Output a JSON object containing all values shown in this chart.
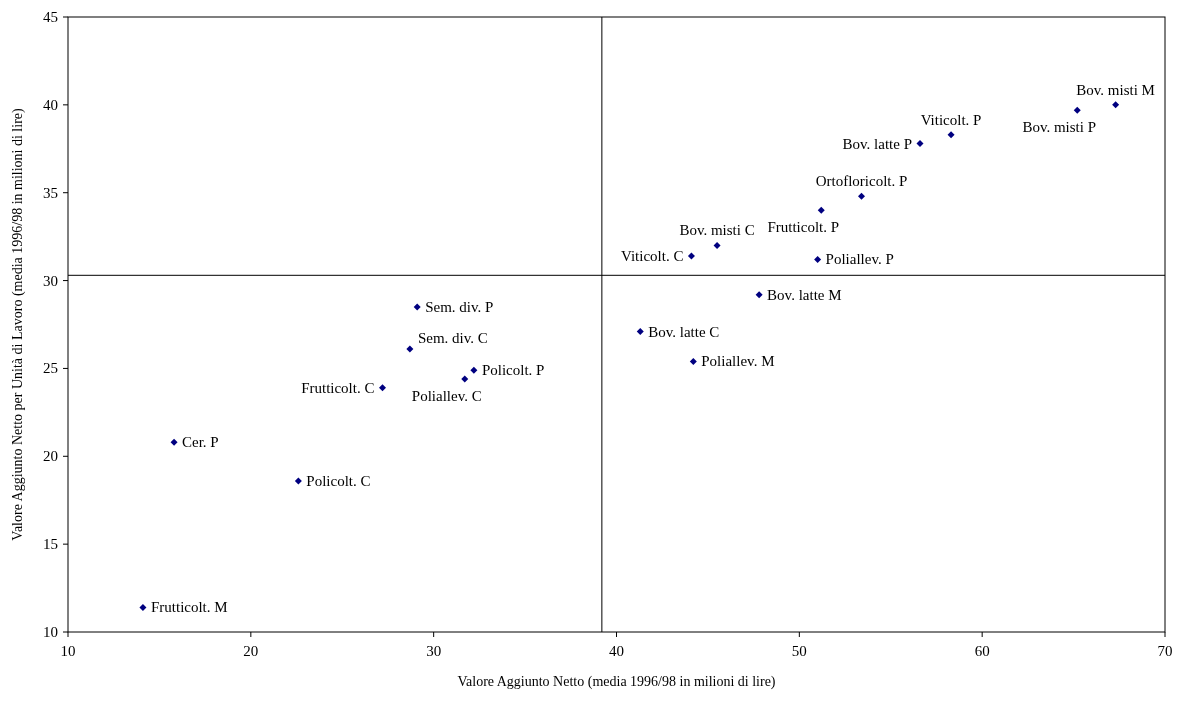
{
  "chart_data": {
    "type": "scatter",
    "xlabel": "Valore Aggiunto Netto (media 1996/98 in milioni di lire)",
    "ylabel": "Valore Aggiunto Netto per Unità di Lavoro (media 1996/98 in milioni di lire)",
    "x": [
      67.3,
      65.2,
      58.3,
      56.6,
      53.4,
      51.2,
      45.5,
      44.1,
      51.0,
      47.8,
      41.3,
      44.2,
      29.1,
      28.7,
      32.2,
      31.7,
      27.2,
      15.8,
      22.6,
      14.1
    ],
    "series": [
      {
        "color": "#000080",
        "values": [
          40.0,
          39.7,
          38.3,
          37.8,
          34.8,
          34.0,
          32.0,
          31.4,
          31.2,
          29.2,
          27.1,
          25.4,
          28.5,
          26.1,
          24.9,
          24.4,
          23.9,
          20.8,
          18.6,
          11.4
        ]
      }
    ],
    "annotations": [
      {
        "text": "Bov. misti M",
        "x": 67.3,
        "y": 40.0
      },
      {
        "text": "Bov. misti P",
        "x": 65.2,
        "y": 39.7
      },
      {
        "text": "Viticolt. P",
        "x": 58.3,
        "y": 38.3
      },
      {
        "text": "Bov. latte P",
        "x": 56.6,
        "y": 37.8
      },
      {
        "text": "Ortofloricolt. P",
        "x": 53.4,
        "y": 34.8
      },
      {
        "text": "Frutticolt. P",
        "x": 51.2,
        "y": 34.0
      },
      {
        "text": "Bov. misti C",
        "x": 45.5,
        "y": 32.0
      },
      {
        "text": "Viticolt. C",
        "x": 44.1,
        "y": 31.4
      },
      {
        "text": "Poliallev. P",
        "x": 51.0,
        "y": 31.2
      },
      {
        "text": "Bov. latte M",
        "x": 47.8,
        "y": 29.2
      },
      {
        "text": "Bov. latte C",
        "x": 41.3,
        "y": 27.1
      },
      {
        "text": "Poliallev. M",
        "x": 44.2,
        "y": 25.4
      },
      {
        "text": "Sem. div. P",
        "x": 29.1,
        "y": 28.5
      },
      {
        "text": "Sem. div. C",
        "x": 28.7,
        "y": 26.1
      },
      {
        "text": "Policolt. P",
        "x": 32.2,
        "y": 24.9
      },
      {
        "text": "Poliallev. C",
        "x": 31.7,
        "y": 24.4
      },
      {
        "text": "Frutticolt. C",
        "x": 27.2,
        "y": 23.9
      },
      {
        "text": "Cer. P",
        "x": 15.8,
        "y": 20.8
      },
      {
        "text": "Policolt. C",
        "x": 22.6,
        "y": 18.6
      },
      {
        "text": "Frutticolt. M",
        "x": 14.1,
        "y": 11.4
      }
    ],
    "ref_lines": [
      {
        "axis": "x",
        "value": 39.2
      },
      {
        "axis": "y",
        "value": 30.3
      }
    ],
    "xlim": [
      10,
      70
    ],
    "xticks": [
      10,
      20,
      30,
      40,
      50,
      60,
      70
    ],
    "ylim": [
      10,
      45
    ],
    "yticks": [
      10,
      15,
      20,
      25,
      30,
      35,
      40,
      45
    ],
    "grid": false,
    "marker": "diamond"
  }
}
